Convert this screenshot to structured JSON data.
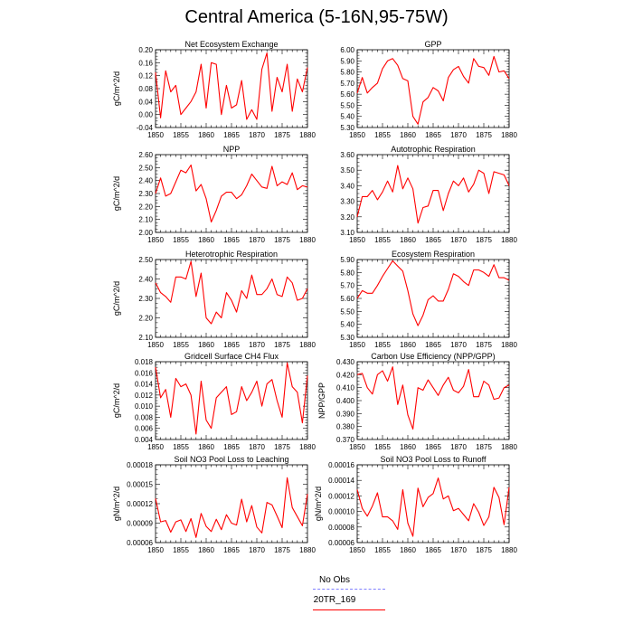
{
  "page": {
    "title": "Central America (5-16N,95-75W)"
  },
  "legend": {
    "items": [
      {
        "label": "No Obs",
        "color": "#8080ff",
        "style": "dashed"
      },
      {
        "label": "20TR_169",
        "color": "#ff0000",
        "style": "solid"
      }
    ]
  },
  "chart_data": [
    {
      "type": "line",
      "title": "Net Ecosystem Exchange",
      "ylabel": "gC/m^2/d",
      "xlim": [
        1850,
        1880
      ],
      "ylim": [
        -0.04,
        0.2
      ],
      "xticks": [
        1850,
        1855,
        1860,
        1865,
        1870,
        1875,
        1880
      ],
      "yticks": [
        -0.04,
        0.0,
        0.04,
        0.08,
        0.12,
        0.16,
        0.2
      ],
      "ytick_labels": [
        "-0.04",
        "0.00",
        "0.04",
        "0.08",
        "0.12",
        "0.16",
        "0.20"
      ],
      "series": [
        {
          "color": "#ff0000",
          "x": [
            1850,
            1851,
            1852,
            1853,
            1854,
            1855,
            1856,
            1857,
            1858,
            1859,
            1860,
            1861,
            1862,
            1863,
            1864,
            1865,
            1866,
            1867,
            1868,
            1869,
            1870,
            1871,
            1872,
            1873,
            1874,
            1875,
            1876,
            1877,
            1878,
            1879,
            1880
          ],
          "y": [
            0.13,
            -0.01,
            0.135,
            0.07,
            0.09,
            0.0,
            0.02,
            0.04,
            0.07,
            0.155,
            0.02,
            0.16,
            0.155,
            0.0,
            0.09,
            0.02,
            0.03,
            0.105,
            -0.015,
            0.015,
            -0.015,
            0.14,
            0.19,
            0.01,
            0.115,
            0.07,
            0.155,
            0.01,
            0.11,
            0.07,
            0.145
          ]
        }
      ]
    },
    {
      "type": "line",
      "title": "GPP",
      "ylabel": "",
      "xlim": [
        1850,
        1880
      ],
      "ylim": [
        5.3,
        6.0
      ],
      "xticks": [
        1850,
        1855,
        1860,
        1865,
        1870,
        1875,
        1880
      ],
      "yticks": [
        5.3,
        5.4,
        5.5,
        5.6,
        5.7,
        5.8,
        5.9,
        6.0
      ],
      "ytick_labels": [
        "5.30",
        "5.40",
        "5.50",
        "5.60",
        "5.70",
        "5.80",
        "5.90",
        "6.00"
      ],
      "series": [
        {
          "color": "#ff0000",
          "x": [
            1850,
            1851,
            1852,
            1853,
            1854,
            1855,
            1856,
            1857,
            1858,
            1859,
            1860,
            1861,
            1862,
            1863,
            1864,
            1865,
            1866,
            1867,
            1868,
            1869,
            1870,
            1871,
            1872,
            1873,
            1874,
            1875,
            1876,
            1877,
            1878,
            1879,
            1880
          ],
          "y": [
            5.61,
            5.75,
            5.61,
            5.66,
            5.7,
            5.83,
            5.9,
            5.92,
            5.86,
            5.74,
            5.72,
            5.4,
            5.33,
            5.53,
            5.57,
            5.66,
            5.63,
            5.54,
            5.75,
            5.82,
            5.85,
            5.76,
            5.7,
            5.92,
            5.85,
            5.84,
            5.77,
            5.94,
            5.8,
            5.81,
            5.74
          ]
        }
      ]
    },
    {
      "type": "line",
      "title": "NPP",
      "ylabel": "gC/m^2/d",
      "xlim": [
        1850,
        1880
      ],
      "ylim": [
        2.0,
        2.6
      ],
      "xticks": [
        1850,
        1855,
        1860,
        1865,
        1870,
        1875,
        1880
      ],
      "yticks": [
        2.0,
        2.1,
        2.2,
        2.3,
        2.4,
        2.5,
        2.6
      ],
      "ytick_labels": [
        "2.00",
        "2.10",
        "2.20",
        "2.30",
        "2.40",
        "2.50",
        "2.60"
      ],
      "series": [
        {
          "color": "#ff0000",
          "x": [
            1850,
            1851,
            1852,
            1853,
            1854,
            1855,
            1856,
            1857,
            1858,
            1859,
            1860,
            1861,
            1862,
            1863,
            1864,
            1865,
            1866,
            1867,
            1868,
            1869,
            1870,
            1871,
            1872,
            1873,
            1874,
            1875,
            1876,
            1877,
            1878,
            1879,
            1880
          ],
          "y": [
            2.3,
            2.42,
            2.28,
            2.3,
            2.39,
            2.48,
            2.46,
            2.52,
            2.32,
            2.37,
            2.26,
            2.08,
            2.17,
            2.28,
            2.31,
            2.31,
            2.26,
            2.29,
            2.36,
            2.45,
            2.4,
            2.35,
            2.34,
            2.51,
            2.36,
            2.39,
            2.37,
            2.46,
            2.33,
            2.36,
            2.35
          ]
        }
      ]
    },
    {
      "type": "line",
      "title": "Autotrophic Respiration",
      "ylabel": "",
      "xlim": [
        1850,
        1880
      ],
      "ylim": [
        3.1,
        3.6
      ],
      "xticks": [
        1850,
        1855,
        1860,
        1865,
        1870,
        1875,
        1880
      ],
      "yticks": [
        3.1,
        3.2,
        3.3,
        3.4,
        3.5,
        3.6
      ],
      "ytick_labels": [
        "3.10",
        "3.20",
        "3.30",
        "3.40",
        "3.50",
        "3.60"
      ],
      "series": [
        {
          "color": "#ff0000",
          "x": [
            1850,
            1851,
            1852,
            1853,
            1854,
            1855,
            1856,
            1857,
            1858,
            1859,
            1860,
            1861,
            1862,
            1863,
            1864,
            1865,
            1866,
            1867,
            1868,
            1869,
            1870,
            1871,
            1872,
            1873,
            1874,
            1875,
            1876,
            1877,
            1878,
            1879,
            1880
          ],
          "y": [
            3.2,
            3.33,
            3.33,
            3.37,
            3.31,
            3.36,
            3.43,
            3.36,
            3.53,
            3.38,
            3.45,
            3.38,
            3.16,
            3.26,
            3.27,
            3.37,
            3.37,
            3.24,
            3.35,
            3.43,
            3.4,
            3.45,
            3.36,
            3.41,
            3.5,
            3.48,
            3.35,
            3.49,
            3.48,
            3.47,
            3.4
          ]
        }
      ]
    },
    {
      "type": "line",
      "title": "Heterotrophic Respiration",
      "ylabel": "gC/m^2/d",
      "xlim": [
        1850,
        1880
      ],
      "ylim": [
        2.1,
        2.5
      ],
      "xticks": [
        1850,
        1855,
        1860,
        1865,
        1870,
        1875,
        1880
      ],
      "yticks": [
        2.1,
        2.2,
        2.3,
        2.4,
        2.5
      ],
      "ytick_labels": [
        "2.10",
        "2.20",
        "2.30",
        "2.40",
        "2.50"
      ],
      "series": [
        {
          "color": "#ff0000",
          "x": [
            1850,
            1851,
            1852,
            1853,
            1854,
            1855,
            1856,
            1857,
            1858,
            1859,
            1860,
            1861,
            1862,
            1863,
            1864,
            1865,
            1866,
            1867,
            1868,
            1869,
            1870,
            1871,
            1872,
            1873,
            1874,
            1875,
            1876,
            1877,
            1878,
            1879,
            1880
          ],
          "y": [
            2.38,
            2.33,
            2.31,
            2.28,
            2.41,
            2.41,
            2.4,
            2.49,
            2.31,
            2.43,
            2.2,
            2.17,
            2.23,
            2.2,
            2.33,
            2.29,
            2.23,
            2.34,
            2.3,
            2.42,
            2.32,
            2.32,
            2.35,
            2.4,
            2.32,
            2.31,
            2.41,
            2.38,
            2.29,
            2.3,
            2.35
          ]
        }
      ]
    },
    {
      "type": "line",
      "title": "Ecosystem Respiration",
      "ylabel": "",
      "xlim": [
        1850,
        1880
      ],
      "ylim": [
        5.3,
        5.9
      ],
      "xticks": [
        1850,
        1855,
        1860,
        1865,
        1870,
        1875,
        1880
      ],
      "yticks": [
        5.3,
        5.4,
        5.5,
        5.6,
        5.7,
        5.8,
        5.9
      ],
      "ytick_labels": [
        "5.30",
        "5.40",
        "5.50",
        "5.60",
        "5.70",
        "5.80",
        "5.90"
      ],
      "series": [
        {
          "color": "#ff0000",
          "x": [
            1850,
            1851,
            1852,
            1853,
            1854,
            1855,
            1856,
            1857,
            1858,
            1859,
            1860,
            1861,
            1862,
            1863,
            1864,
            1865,
            1866,
            1867,
            1868,
            1869,
            1870,
            1871,
            1872,
            1873,
            1874,
            1875,
            1876,
            1877,
            1878,
            1879,
            1880
          ],
          "y": [
            5.6,
            5.66,
            5.64,
            5.64,
            5.7,
            5.77,
            5.83,
            5.89,
            5.85,
            5.81,
            5.66,
            5.48,
            5.39,
            5.47,
            5.59,
            5.62,
            5.58,
            5.58,
            5.67,
            5.79,
            5.77,
            5.73,
            5.7,
            5.82,
            5.82,
            5.8,
            5.77,
            5.86,
            5.76,
            5.76,
            5.74
          ]
        }
      ]
    },
    {
      "type": "line",
      "title": "Gridcell Surface CH4 Flux",
      "ylabel": "gC/m^2/d",
      "xlim": [
        1850,
        1880
      ],
      "ylim": [
        0.004,
        0.018
      ],
      "xticks": [
        1850,
        1855,
        1860,
        1865,
        1870,
        1875,
        1880
      ],
      "yticks": [
        0.004,
        0.006,
        0.008,
        0.01,
        0.012,
        0.014,
        0.016,
        0.018
      ],
      "ytick_labels": [
        "0.004",
        "0.006",
        "0.008",
        "0.010",
        "0.012",
        "0.014",
        "0.016",
        "0.018"
      ],
      "series": [
        {
          "color": "#ff0000",
          "x": [
            1850,
            1851,
            1852,
            1853,
            1854,
            1855,
            1856,
            1857,
            1858,
            1859,
            1860,
            1861,
            1862,
            1863,
            1864,
            1865,
            1866,
            1867,
            1868,
            1869,
            1870,
            1871,
            1872,
            1873,
            1874,
            1875,
            1876,
            1877,
            1878,
            1879,
            1880
          ],
          "y": [
            0.017,
            0.0115,
            0.013,
            0.008,
            0.015,
            0.0135,
            0.014,
            0.012,
            0.005,
            0.0145,
            0.0075,
            0.006,
            0.0115,
            0.0125,
            0.0135,
            0.0085,
            0.009,
            0.0135,
            0.011,
            0.0125,
            0.0145,
            0.01,
            0.014,
            0.0148,
            0.011,
            0.008,
            0.0178,
            0.0135,
            0.0125,
            0.007,
            0.0155
          ]
        }
      ]
    },
    {
      "type": "line",
      "title": "Carbon Use Efficiency (NPP/GPP)",
      "ylabel": "NPP/GPP",
      "xlim": [
        1850,
        1880
      ],
      "ylim": [
        0.37,
        0.43
      ],
      "xticks": [
        1850,
        1855,
        1860,
        1865,
        1870,
        1875,
        1880
      ],
      "yticks": [
        0.37,
        0.38,
        0.39,
        0.4,
        0.41,
        0.42,
        0.43
      ],
      "ytick_labels": [
        "0.370",
        "0.380",
        "0.390",
        "0.400",
        "0.410",
        "0.420",
        "0.430"
      ],
      "series": [
        {
          "color": "#ff0000",
          "x": [
            1850,
            1851,
            1852,
            1853,
            1854,
            1855,
            1856,
            1857,
            1858,
            1859,
            1860,
            1861,
            1862,
            1863,
            1864,
            1865,
            1866,
            1867,
            1868,
            1869,
            1870,
            1871,
            1872,
            1873,
            1874,
            1875,
            1876,
            1877,
            1878,
            1879,
            1880
          ],
          "y": [
            0.42,
            0.421,
            0.41,
            0.405,
            0.42,
            0.423,
            0.415,
            0.426,
            0.397,
            0.412,
            0.389,
            0.378,
            0.41,
            0.408,
            0.416,
            0.41,
            0.404,
            0.412,
            0.418,
            0.408,
            0.406,
            0.411,
            0.424,
            0.403,
            0.403,
            0.415,
            0.412,
            0.401,
            0.402,
            0.41,
            0.412
          ]
        }
      ]
    },
    {
      "type": "line",
      "title": "Soil NO3 Pool Loss to Leaching",
      "ylabel": "gN/m^2/d",
      "xlim": [
        1850,
        1880
      ],
      "ylim": [
        6e-05,
        0.00018
      ],
      "xticks": [
        1850,
        1855,
        1860,
        1865,
        1870,
        1875,
        1880
      ],
      "yticks": [
        6e-05,
        9e-05,
        0.00012,
        0.00015,
        0.00018
      ],
      "ytick_labels": [
        "0.00006",
        "0.00009",
        "0.00012",
        "0.00015",
        "0.00018"
      ],
      "series": [
        {
          "color": "#ff0000",
          "x": [
            1850,
            1851,
            1852,
            1853,
            1854,
            1855,
            1856,
            1857,
            1858,
            1859,
            1860,
            1861,
            1862,
            1863,
            1864,
            1865,
            1866,
            1867,
            1868,
            1869,
            1870,
            1871,
            1872,
            1873,
            1874,
            1875,
            1876,
            1877,
            1878,
            1879,
            1880
          ],
          "y": [
            0.000128,
            9.2e-05,
            9.4e-05,
            7.6e-05,
            9.2e-05,
            9.5e-05,
            7.7e-05,
            9.7e-05,
            6.8e-05,
            0.000105,
            8.5e-05,
            7.7e-05,
            9.6e-05,
            8e-05,
            0.000103,
            9e-05,
            8.7e-05,
            0.000127,
            9.2e-05,
            0.000117,
            8.4e-05,
            7.5e-05,
            0.000122,
            0.000118,
            0.000101,
            8.3e-05,
            0.00016,
            0.000114,
            0.0001,
            8.6e-05,
            0.000135
          ]
        }
      ]
    },
    {
      "type": "line",
      "title": "Soil NO3 Pool Loss to Runoff",
      "ylabel": "gN/m^2/d",
      "xlim": [
        1850,
        1880
      ],
      "ylim": [
        6e-05,
        0.00016
      ],
      "xticks": [
        1850,
        1855,
        1860,
        1865,
        1870,
        1875,
        1880
      ],
      "yticks": [
        6e-05,
        8e-05,
        0.0001,
        0.00012,
        0.00014,
        0.00016
      ],
      "ytick_labels": [
        "0.00006",
        "0.00008",
        "0.00010",
        "0.00012",
        "0.00014",
        "0.00016"
      ],
      "series": [
        {
          "color": "#ff0000",
          "x": [
            1850,
            1851,
            1852,
            1853,
            1854,
            1855,
            1856,
            1857,
            1858,
            1859,
            1860,
            1861,
            1862,
            1863,
            1864,
            1865,
            1866,
            1867,
            1868,
            1869,
            1870,
            1871,
            1872,
            1873,
            1874,
            1875,
            1876,
            1877,
            1878,
            1879,
            1880
          ],
          "y": [
            0.000128,
            0.000104,
            9.4e-05,
            0.000107,
            0.000124,
            9.3e-05,
            9.3e-05,
            8.8e-05,
            7.7e-05,
            0.000128,
            8.5e-05,
            6.8e-05,
            0.00013,
            0.000106,
            0.000118,
            0.000123,
            0.000143,
            0.000116,
            0.00012,
            0.000101,
            0.000104,
            9.6e-05,
            8.8e-05,
            0.00011,
            9.9e-05,
            8.2e-05,
            9.3e-05,
            0.000131,
            0.000118,
            8.3e-05,
            0.000131
          ]
        }
      ]
    }
  ]
}
